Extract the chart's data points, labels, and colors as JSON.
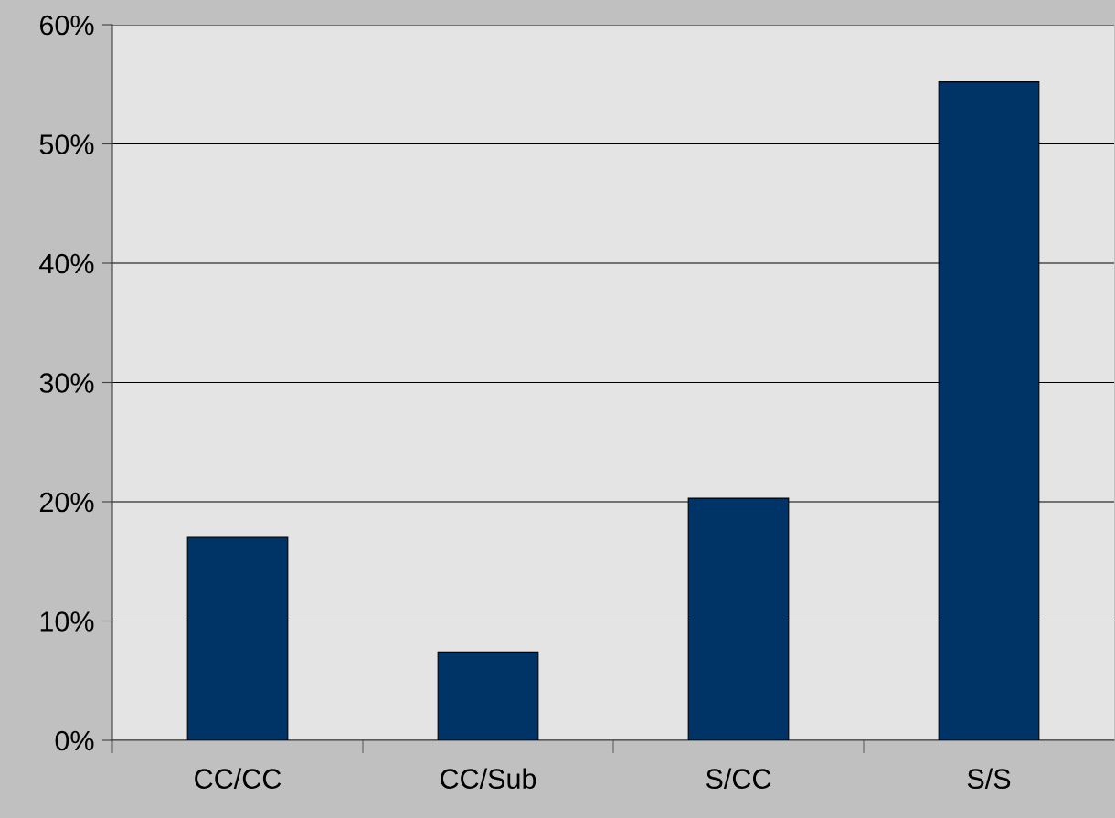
{
  "chart_data": {
    "type": "bar",
    "categories": [
      "CC/CC",
      "CC/Sub",
      "S/CC",
      "S/S"
    ],
    "values": [
      17,
      7.4,
      20.3,
      55.2
    ],
    "color": "#003366",
    "ylim": [
      0,
      60
    ],
    "yticks": [
      {
        "value": 0,
        "label": "0%"
      },
      {
        "value": 10,
        "label": "10%"
      },
      {
        "value": 20,
        "label": "20%"
      },
      {
        "value": 30,
        "label": "30%"
      },
      {
        "value": 40,
        "label": "40%"
      },
      {
        "value": 50,
        "label": "50%"
      },
      {
        "value": 60,
        "label": "60%"
      }
    ],
    "grid": "y",
    "legend": false
  }
}
